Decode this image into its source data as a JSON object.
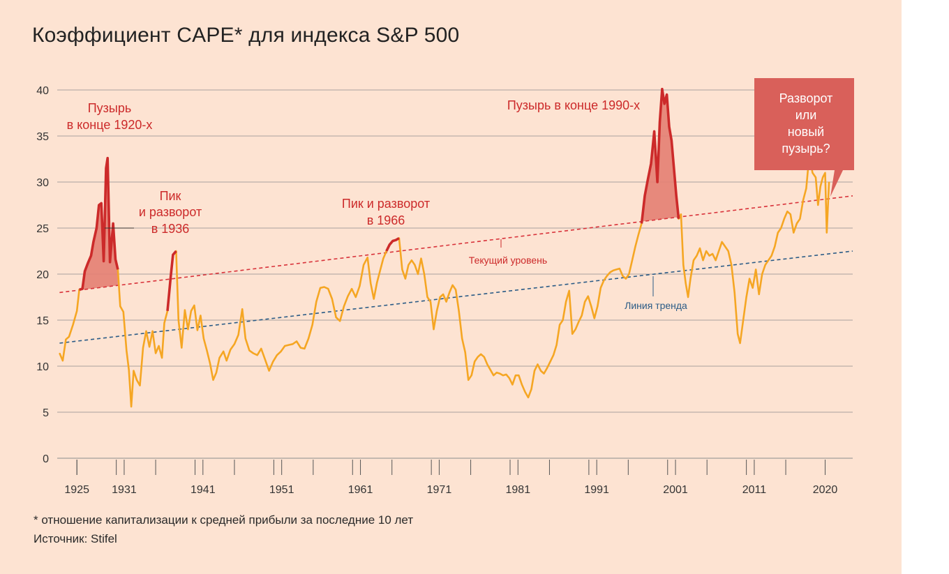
{
  "title": "Коэффициент CAPE* для индекса S&P 500",
  "footnote": "* отношение капитализации к средней прибыли за последние 10 лет",
  "source": "Источник: Stifel",
  "colors": {
    "background": "#fde3d2",
    "cape_line": "#f5a623",
    "bubble_line": "#cc2a2a",
    "bubble_fill": "#e47e72",
    "current_level_line": "#d8323a",
    "trend_line": "#2a5b86",
    "gridline": "#8c8c8c",
    "callout_box": "#d9605a"
  },
  "chart_data": {
    "type": "line",
    "title": "Коэффициент CAPE* для индекса S&P 500",
    "xlabel": "",
    "ylabel": "",
    "xlim": [
      1922.5,
      2023.5
    ],
    "ylim": [
      0,
      40
    ],
    "grid": true,
    "y_ticks": [
      0,
      5,
      10,
      15,
      20,
      25,
      30,
      35,
      40
    ],
    "x_tick_labels": [
      "1925",
      "1931",
      "1941",
      "1951",
      "1961",
      "1971",
      "1981",
      "1991",
      "2001",
      "2011",
      "2020"
    ],
    "x_tick_values": [
      1925,
      1931,
      1941,
      1951,
      1961,
      1971,
      1981,
      1991,
      2001,
      2011,
      2020
    ],
    "series": [
      {
        "values": [
          [
            1922.8,
            11.4
          ],
          [
            1923.2,
            10.6
          ],
          [
            1923.6,
            12.9
          ],
          [
            1924.0,
            13.2
          ],
          [
            1924.5,
            14.5
          ],
          [
            1925.0,
            16.0
          ],
          [
            1925.3,
            18.3
          ],
          [
            1925.7,
            18.4
          ],
          [
            1926.0,
            20.3
          ],
          [
            1926.4,
            21.2
          ],
          [
            1926.8,
            22.0
          ],
          [
            1927.1,
            23.5
          ],
          [
            1927.5,
            25.0
          ],
          [
            1927.8,
            27.5
          ],
          [
            1928.1,
            27.7
          ],
          [
            1928.4,
            21.4
          ],
          [
            1928.7,
            31.5
          ],
          [
            1928.9,
            32.6
          ],
          [
            1929.2,
            21.3
          ],
          [
            1929.6,
            25.5
          ],
          [
            1929.9,
            21.6
          ],
          [
            1930.2,
            20.5
          ],
          [
            1930.5,
            16.5
          ],
          [
            1930.9,
            15.9
          ],
          [
            1931.3,
            11.7
          ],
          [
            1931.6,
            9.6
          ],
          [
            1931.9,
            5.6
          ],
          [
            1932.2,
            9.5
          ],
          [
            1932.6,
            8.5
          ],
          [
            1933.0,
            7.9
          ],
          [
            1933.4,
            12.0
          ],
          [
            1933.8,
            13.8
          ],
          [
            1934.2,
            12.1
          ],
          [
            1934.6,
            13.8
          ],
          [
            1935.0,
            11.4
          ],
          [
            1935.4,
            12.2
          ],
          [
            1935.8,
            10.9
          ],
          [
            1936.1,
            14.7
          ],
          [
            1936.5,
            16.0
          ],
          [
            1936.9,
            19.6
          ],
          [
            1937.2,
            22.1
          ],
          [
            1937.6,
            22.5
          ],
          [
            1937.9,
            15.0
          ],
          [
            1938.3,
            12.0
          ],
          [
            1938.7,
            16.1
          ],
          [
            1939.1,
            14.0
          ],
          [
            1939.5,
            16.0
          ],
          [
            1939.9,
            16.6
          ],
          [
            1940.3,
            13.9
          ],
          [
            1940.7,
            15.5
          ],
          [
            1941.1,
            13.0
          ],
          [
            1941.5,
            11.7
          ],
          [
            1941.9,
            10.3
          ],
          [
            1942.3,
            8.5
          ],
          [
            1942.7,
            9.3
          ],
          [
            1943.1,
            10.9
          ],
          [
            1943.6,
            11.6
          ],
          [
            1944.0,
            10.6
          ],
          [
            1944.5,
            11.8
          ],
          [
            1945.0,
            12.4
          ],
          [
            1945.5,
            13.4
          ],
          [
            1946.0,
            16.2
          ],
          [
            1946.4,
            13.0
          ],
          [
            1946.9,
            11.7
          ],
          [
            1947.4,
            11.4
          ],
          [
            1947.9,
            11.2
          ],
          [
            1948.4,
            11.9
          ],
          [
            1948.9,
            10.7
          ],
          [
            1949.4,
            9.5
          ],
          [
            1949.9,
            10.5
          ],
          [
            1950.4,
            11.2
          ],
          [
            1950.9,
            11.6
          ],
          [
            1951.4,
            12.2
          ],
          [
            1951.9,
            12.3
          ],
          [
            1952.4,
            12.4
          ],
          [
            1952.9,
            12.7
          ],
          [
            1953.4,
            12.0
          ],
          [
            1953.9,
            11.9
          ],
          [
            1954.4,
            13.0
          ],
          [
            1954.9,
            14.5
          ],
          [
            1955.4,
            17.0
          ],
          [
            1955.9,
            18.5
          ],
          [
            1956.4,
            18.6
          ],
          [
            1956.9,
            18.4
          ],
          [
            1957.4,
            17.3
          ],
          [
            1957.9,
            15.3
          ],
          [
            1958.4,
            14.9
          ],
          [
            1958.9,
            16.5
          ],
          [
            1959.4,
            17.6
          ],
          [
            1959.9,
            18.4
          ],
          [
            1960.4,
            17.5
          ],
          [
            1960.9,
            18.7
          ],
          [
            1961.4,
            21.0
          ],
          [
            1961.9,
            21.8
          ],
          [
            1962.3,
            19.0
          ],
          [
            1962.7,
            17.3
          ],
          [
            1963.1,
            19.1
          ],
          [
            1963.5,
            20.4
          ],
          [
            1963.9,
            21.7
          ],
          [
            1964.3,
            22.5
          ],
          [
            1964.7,
            23.2
          ],
          [
            1965.1,
            23.6
          ],
          [
            1965.5,
            23.7
          ],
          [
            1965.9,
            23.9
          ],
          [
            1966.3,
            20.5
          ],
          [
            1966.7,
            19.5
          ],
          [
            1967.1,
            21.0
          ],
          [
            1967.5,
            21.5
          ],
          [
            1967.9,
            21.0
          ],
          [
            1968.3,
            20.0
          ],
          [
            1968.7,
            21.7
          ],
          [
            1969.1,
            20.0
          ],
          [
            1969.5,
            17.5
          ],
          [
            1969.9,
            17.0
          ],
          [
            1970.3,
            14.0
          ],
          [
            1970.7,
            16.0
          ],
          [
            1971.1,
            17.5
          ],
          [
            1971.5,
            17.8
          ],
          [
            1971.9,
            17.0
          ],
          [
            1972.3,
            18.0
          ],
          [
            1972.7,
            18.8
          ],
          [
            1973.1,
            18.3
          ],
          [
            1973.5,
            16.0
          ],
          [
            1973.9,
            13.0
          ],
          [
            1974.3,
            11.5
          ],
          [
            1974.7,
            8.5
          ],
          [
            1975.1,
            9.0
          ],
          [
            1975.5,
            10.5
          ],
          [
            1975.9,
            11.0
          ],
          [
            1976.3,
            11.3
          ],
          [
            1976.7,
            11.0
          ],
          [
            1977.1,
            10.2
          ],
          [
            1977.5,
            9.6
          ],
          [
            1977.9,
            9.0
          ],
          [
            1978.3,
            9.3
          ],
          [
            1978.7,
            9.2
          ],
          [
            1979.1,
            9.0
          ],
          [
            1979.5,
            9.1
          ],
          [
            1979.9,
            8.7
          ],
          [
            1980.3,
            8.0
          ],
          [
            1980.7,
            9.0
          ],
          [
            1981.1,
            9.0
          ],
          [
            1981.5,
            8.0
          ],
          [
            1981.9,
            7.2
          ],
          [
            1982.3,
            6.6
          ],
          [
            1982.7,
            7.5
          ],
          [
            1983.1,
            9.5
          ],
          [
            1983.5,
            10.2
          ],
          [
            1983.9,
            9.5
          ],
          [
            1984.3,
            9.2
          ],
          [
            1984.7,
            9.8
          ],
          [
            1985.1,
            10.5
          ],
          [
            1985.5,
            11.2
          ],
          [
            1985.9,
            12.3
          ],
          [
            1986.3,
            14.5
          ],
          [
            1986.7,
            15.0
          ],
          [
            1987.1,
            17.0
          ],
          [
            1987.5,
            18.2
          ],
          [
            1987.9,
            13.5
          ],
          [
            1988.3,
            14.0
          ],
          [
            1988.7,
            14.8
          ],
          [
            1989.1,
            15.5
          ],
          [
            1989.5,
            17.0
          ],
          [
            1989.9,
            17.6
          ],
          [
            1990.3,
            16.5
          ],
          [
            1990.7,
            15.2
          ],
          [
            1991.1,
            16.5
          ],
          [
            1991.5,
            18.5
          ],
          [
            1991.9,
            19.3
          ],
          [
            1992.3,
            19.8
          ],
          [
            1992.7,
            20.2
          ],
          [
            1993.1,
            20.4
          ],
          [
            1993.5,
            20.5
          ],
          [
            1993.9,
            20.6
          ],
          [
            1994.3,
            19.8
          ],
          [
            1994.7,
            19.5
          ],
          [
            1995.1,
            20.0
          ],
          [
            1995.5,
            21.5
          ],
          [
            1995.9,
            23.0
          ],
          [
            1996.3,
            24.3
          ],
          [
            1996.7,
            25.5
          ],
          [
            1997.1,
            28.5
          ],
          [
            1997.5,
            30.3
          ],
          [
            1997.9,
            32.0
          ],
          [
            1998.3,
            35.5
          ],
          [
            1998.7,
            30.0
          ],
          [
            1999.0,
            36.5
          ],
          [
            1999.3,
            40.1
          ],
          [
            1999.6,
            38.5
          ],
          [
            1999.9,
            39.5
          ],
          [
            2000.2,
            36.0
          ],
          [
            2000.5,
            34.5
          ],
          [
            2000.8,
            31.5
          ],
          [
            2001.1,
            28.5
          ],
          [
            2001.4,
            26.0
          ],
          [
            2001.7,
            26.5
          ],
          [
            2002.0,
            21.0
          ],
          [
            2002.3,
            19.0
          ],
          [
            2002.6,
            17.5
          ],
          [
            2002.9,
            19.5
          ],
          [
            2003.3,
            21.5
          ],
          [
            2003.7,
            22.0
          ],
          [
            2004.1,
            22.8
          ],
          [
            2004.5,
            21.5
          ],
          [
            2004.9,
            22.5
          ],
          [
            2005.3,
            22.0
          ],
          [
            2005.7,
            22.2
          ],
          [
            2006.1,
            21.5
          ],
          [
            2006.5,
            22.5
          ],
          [
            2006.9,
            23.5
          ],
          [
            2007.3,
            23.0
          ],
          [
            2007.7,
            22.5
          ],
          [
            2008.1,
            21.0
          ],
          [
            2008.5,
            18.0
          ],
          [
            2008.9,
            13.5
          ],
          [
            2009.2,
            12.5
          ],
          [
            2009.6,
            15.0
          ],
          [
            2010.0,
            17.5
          ],
          [
            2010.4,
            19.5
          ],
          [
            2010.8,
            18.5
          ],
          [
            2011.2,
            20.5
          ],
          [
            2011.6,
            17.8
          ],
          [
            2012.0,
            20.0
          ],
          [
            2012.4,
            21.0
          ],
          [
            2012.8,
            21.5
          ],
          [
            2013.2,
            22.0
          ],
          [
            2013.6,
            23.0
          ],
          [
            2014.0,
            24.5
          ],
          [
            2014.4,
            25.0
          ],
          [
            2014.8,
            26.0
          ],
          [
            2015.2,
            26.8
          ],
          [
            2015.6,
            26.5
          ],
          [
            2016.0,
            24.5
          ],
          [
            2016.4,
            25.5
          ],
          [
            2016.8,
            26.0
          ],
          [
            2017.2,
            28.0
          ],
          [
            2017.6,
            29.3
          ],
          [
            2018.0,
            33.0
          ],
          [
            2018.4,
            31.0
          ],
          [
            2018.8,
            30.5
          ],
          [
            2019.1,
            27.5
          ],
          [
            2019.4,
            29.5
          ],
          [
            2019.7,
            30.5
          ],
          [
            2020.0,
            31.0
          ],
          [
            2020.2,
            24.5
          ],
          [
            2020.5,
            30.0
          ]
        ]
      }
    ],
    "reference_lines": [
      {
        "name": "Текущий уровень",
        "y_start": 18.0,
        "y_end": 28.5
      },
      {
        "name": "Линия тренда",
        "y_start": 12.5,
        "y_end": 22.5
      }
    ]
  },
  "annotations": {
    "bubble_1920s": [
      "Пузырь",
      "в конце 1920-х"
    ],
    "peak_1936": [
      "Пик",
      "и разворот",
      "в 1936"
    ],
    "peak_1966": [
      "Пик и разворот",
      "в 1966"
    ],
    "bubble_1990s": "Пузырь в конце 1990-х",
    "current_level": "Текущий уровень",
    "trend_line": "Линия тренда",
    "callout": [
      "Разворот",
      "или",
      "новый",
      "пузырь?"
    ]
  }
}
